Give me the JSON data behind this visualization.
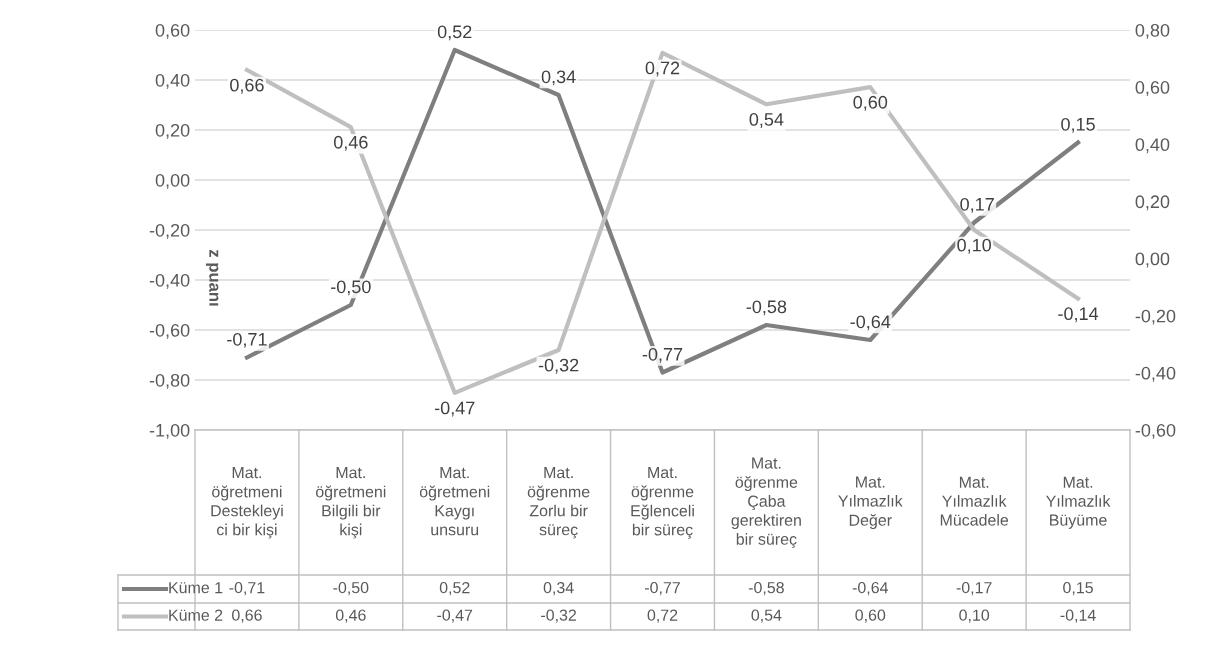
{
  "chart_data": {
    "type": "line",
    "categories": [
      "Mat.\nöğretmeni\nDestekleyi\nci bir kişi",
      "Mat.\nöğretmeni\nBilgili bir\nkişi",
      "Mat.\nöğretmeni\nKaygı\nunsuru",
      "Mat.\nöğrenme\nZorlu bir\nsüreç",
      "Mat.\nöğrenme\nEğlenceli\nbir süreç",
      "Mat.\nöğrenme\nÇaba\ngerektiren\nbir süreç",
      "Mat.\nYılmazlık\nDeğer",
      "Mat.\nYılmazlık\nMücadele",
      "Mat.\nYılmazlık\nBüyüme"
    ],
    "ylabel": "z puanı",
    "series": [
      {
        "name": "Küme 1",
        "color": "#7f7f7f",
        "values": [
          -0.71,
          -0.5,
          0.52,
          0.34,
          -0.77,
          -0.58,
          -0.64,
          -0.17,
          0.15
        ],
        "value_labels": [
          "-0,71",
          "-0,50",
          "0,52",
          "0,34",
          "-0,77",
          "-0,58",
          "-0,64",
          "-0,17",
          "0,15"
        ]
      },
      {
        "name": "Küme 2",
        "color": "#bfbfbf",
        "axis": "y2",
        "values": [
          0.66,
          0.46,
          -0.47,
          -0.32,
          0.72,
          0.54,
          0.6,
          0.1,
          -0.14
        ],
        "value_labels": [
          "0,66",
          "0,46",
          "-0,47",
          "-0,32",
          "0,72",
          "0,54",
          "0,60",
          "0,10",
          "-0,14"
        ]
      }
    ],
    "ylim": [
      -1.0,
      0.6
    ],
    "yticks": [
      {
        "value": -1.0,
        "label": "-1,00"
      },
      {
        "value": -0.8,
        "label": "-0,80"
      },
      {
        "value": -0.6,
        "label": "-0,60"
      },
      {
        "value": -0.4,
        "label": "-0,40"
      },
      {
        "value": -0.2,
        "label": "-0,20"
      },
      {
        "value": 0.0,
        "label": "0,00"
      },
      {
        "value": 0.2,
        "label": "0,20"
      },
      {
        "value": 0.4,
        "label": "0,40"
      },
      {
        "value": 0.6,
        "label": "0,60"
      }
    ],
    "y2lim": [
      -0.6,
      0.8
    ],
    "y2ticks": [
      {
        "value": -0.6,
        "label": "-0,60"
      },
      {
        "value": -0.4,
        "label": "-0,40"
      },
      {
        "value": -0.2,
        "label": "-0,20"
      },
      {
        "value": 0.0,
        "label": "0,00"
      },
      {
        "value": 0.2,
        "label": "0,20"
      },
      {
        "value": 0.4,
        "label": "0,40"
      },
      {
        "value": 0.6,
        "label": "0,60"
      },
      {
        "value": 0.8,
        "label": "0,80"
      }
    ],
    "grid": "y",
    "legend": "bottom",
    "marker": "none",
    "line_style": "solid"
  }
}
